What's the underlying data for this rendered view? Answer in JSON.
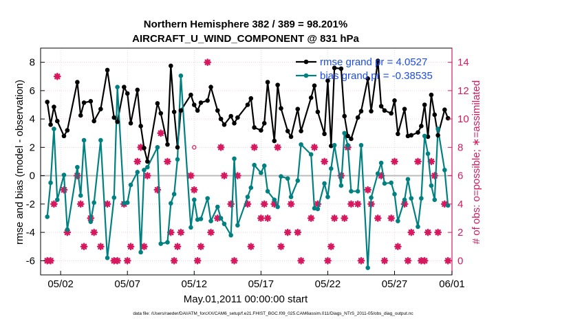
{
  "chart_data": {
    "type": "line",
    "title": "Northern Hemisphere 382 / 389 = 98.201%",
    "subtitle": "AIRCRAFT_U_WIND_COMPONENT @ 831 hPa",
    "xlabel": "May.01,2011 00:00:00 start",
    "ylabel": "rmse and bias (model - observation)",
    "y2label": "# of obs: o=possible; ∗=assimilated",
    "footnote": "data file: /Users/raeder/DAI/ATM_forcXX/CAM6_setup/f.e21.FHIST_BGC.f09_025.CAM6assim.011/Diags_NTrS_2011-05/obs_diag_output.nc",
    "xlim": [
      0.5,
      31.3
    ],
    "ylim": [
      -7,
      9
    ],
    "y2lim": [
      -1,
      15
    ],
    "xticks": [
      2,
      7,
      12,
      17,
      22,
      27,
      32
    ],
    "xtick_labels": [
      "05/02",
      "05/07",
      "05/12",
      "05/17",
      "05/22",
      "05/27",
      "06/01"
    ],
    "yticks": [
      -6,
      -4,
      -2,
      0,
      2,
      4,
      6,
      8
    ],
    "y2ticks": [
      0,
      2,
      4,
      6,
      8,
      10,
      12,
      14
    ],
    "colors": {
      "rmse": "#000000",
      "bias": "#008080",
      "obs": "#d6185e",
      "zero": "#bbbbbb",
      "legend_text": "#1a4cf0"
    },
    "series": [
      {
        "name": "rmse grand pr = 4.0527",
        "x": [
          1.0,
          1.25,
          1.5,
          1.75,
          2.25,
          2.5,
          3.25,
          3.5,
          3.75,
          4.25,
          4.5,
          5.0,
          5.5,
          6.0,
          6.25,
          6.75,
          7.0,
          7.25,
          7.75,
          8.0,
          8.25,
          8.5,
          9.25,
          9.5,
          10.0,
          10.25,
          10.5,
          10.75,
          11.0,
          11.75,
          12.0,
          12.25,
          12.5,
          13.0,
          13.25,
          13.75,
          14.0,
          14.25,
          14.75,
          15.0,
          15.25,
          16.0,
          16.25,
          16.5,
          17.0,
          17.25,
          17.5,
          18.0,
          18.25,
          18.5,
          19.0,
          19.25,
          19.75,
          20.0,
          20.75,
          21.0,
          21.25,
          21.75,
          22.0,
          22.25,
          22.5,
          23.0,
          23.25,
          23.5,
          23.75,
          24.25,
          24.5,
          25.0,
          25.25,
          25.75,
          26.0,
          26.25,
          26.75,
          27.0,
          27.25,
          27.75,
          28.0,
          28.25,
          28.75,
          29.0,
          29.25,
          29.5,
          29.75,
          30.0,
          30.25,
          30.75,
          31.0
        ],
        "values": [
          5.2,
          3.6,
          4.85,
          3.85,
          2.8,
          3.2,
          6.6,
          4.25,
          5.15,
          5.25,
          3.85,
          4.7,
          7.45,
          4.1,
          3.8,
          6.25,
          5.8,
          3.7,
          6.05,
          3.5,
          1.95,
          1.0,
          5.1,
          4.4,
          2.2,
          7.75,
          4.5,
          2.0,
          4.6,
          5.7,
          5.0,
          4.6,
          5.15,
          5.3,
          6.25,
          4.6,
          4.0,
          3.6,
          4.2,
          3.7,
          4.1,
          5.0,
          5.45,
          3.4,
          3.2,
          3.7,
          6.6,
          2.45,
          6.4,
          4.75,
          3.15,
          2.75,
          4.7,
          3.15,
          5.5,
          6.35,
          4.5,
          2.95,
          6.7,
          2.1,
          7.6,
          7.55,
          4.2,
          2.8,
          2.6,
          4.1,
          4.55,
          6.85,
          4.55,
          8.1,
          4.9,
          4.6,
          4.4,
          5.3,
          2.95,
          4.7,
          2.8,
          2.85,
          3.05,
          3.5,
          5.0,
          2.75,
          5.7,
          4.3,
          2.85,
          4.65,
          4.05
        ]
      },
      {
        "name": "bias grand pr = -0.38535",
        "x": [
          1.0,
          1.25,
          1.5,
          1.75,
          2.25,
          2.5,
          3.25,
          3.5,
          3.75,
          4.25,
          4.5,
          5.0,
          5.5,
          6.0,
          6.25,
          6.75,
          7.0,
          7.25,
          7.75,
          8.0,
          8.25,
          8.5,
          9.25,
          9.5,
          10.0,
          10.25,
          10.5,
          10.75,
          11.0,
          11.75,
          12.0,
          12.25,
          12.5,
          13.0,
          13.25,
          13.75,
          14.0,
          14.25,
          14.75,
          15.0,
          15.25,
          16.0,
          16.25,
          16.5,
          17.0,
          17.25,
          17.5,
          18.0,
          18.25,
          18.5,
          19.0,
          19.25,
          19.75,
          20.0,
          20.75,
          21.0,
          21.25,
          21.75,
          22.0,
          22.25,
          22.5,
          23.0,
          23.25,
          23.5,
          23.75,
          24.25,
          24.5,
          25.0,
          25.25,
          25.75,
          26.0,
          26.25,
          26.75,
          27.0,
          27.25,
          27.75,
          28.0,
          28.25,
          28.75,
          29.0,
          29.25,
          29.5,
          29.75,
          30.0,
          30.25,
          30.75,
          31.0
        ],
        "values": [
          -2.9,
          -0.5,
          3.3,
          -1.7,
          0.05,
          -3.8,
          0.6,
          -1.4,
          2.5,
          -3.25,
          -1.9,
          2.5,
          -5.8,
          -1.55,
          6.25,
          -1.95,
          -1.9,
          -0.65,
          0.25,
          -5.4,
          0.4,
          0.6,
          2.0,
          -4.8,
          -4.7,
          -1.95,
          -1.3,
          1.15,
          7.05,
          -3.65,
          -1.7,
          -3.1,
          -3.05,
          -1.6,
          -3.2,
          -2.2,
          -3.0,
          -3.4,
          -4.2,
          1.2,
          -3.5,
          -1.5,
          -0.85,
          0.75,
          0.2,
          0.7,
          -1.1,
          -1.7,
          -2.2,
          -0.05,
          -0.2,
          -1.5,
          -0.35,
          2.2,
          1.5,
          -2.3,
          -2.35,
          -0.55,
          -1.5,
          0.5,
          2.15,
          -0.7,
          3.0,
          2.15,
          -1.1,
          -1.1,
          2.15,
          -6.5,
          -1.55,
          0.15,
          0.9,
          -0.55,
          -0.5,
          -1.3,
          -3.2,
          -1.7,
          -0.25,
          -1.6,
          -3.6,
          -1.6,
          2.8,
          1.55,
          -0.7,
          -1.7,
          3.3,
          0.4,
          -2.1
        ]
      }
    ],
    "obs_possible": {
      "x": [
        1.0,
        1.25,
        1.5,
        1.75,
        2.25,
        2.5,
        3.25,
        3.5,
        3.75,
        4.25,
        4.5,
        5.0,
        5.5,
        6.0,
        6.25,
        6.75,
        7.0,
        7.25,
        7.75,
        8.0,
        8.25,
        8.5,
        9.25,
        9.5,
        10.0,
        10.25,
        10.5,
        10.75,
        11.0,
        11.75,
        12.0,
        12.25,
        12.5,
        13.0,
        13.25,
        13.75,
        14.0,
        14.25,
        14.75,
        15.0,
        15.25,
        16.0,
        16.25,
        16.5,
        17.0,
        17.25,
        17.5,
        18.0,
        18.25,
        18.5,
        19.0,
        19.25,
        19.75,
        20.0,
        20.75,
        21.0,
        21.25,
        21.75,
        22.0,
        22.25,
        22.5,
        23.0,
        23.25,
        23.5,
        23.75,
        24.25,
        24.5,
        25.0,
        25.25,
        25.75,
        26.0,
        26.25,
        26.75,
        27.0,
        27.25,
        27.75,
        28.0,
        28.25,
        28.75,
        29.0,
        29.25,
        29.5,
        29.75,
        30.0,
        30.25,
        30.75,
        31.0
      ],
      "values": [
        0,
        0,
        4,
        13,
        5,
        2,
        6,
        4,
        1,
        3,
        2,
        1,
        4,
        0,
        0,
        4,
        0,
        1,
        7,
        8,
        1,
        6,
        8,
        9,
        7,
        2,
        0,
        1,
        2,
        6,
        8,
        0,
        1,
        14,
        2,
        3,
        8,
        6,
        4,
        0,
        6,
        4,
        1,
        8,
        3,
        4,
        3,
        4,
        8,
        1,
        2,
        4,
        2,
        0,
        3,
        8,
        4,
        7,
        0,
        1,
        3,
        6,
        3,
        8,
        4,
        4,
        0,
        5,
        4,
        3,
        6,
        0,
        3,
        7,
        1,
        4,
        0,
        2,
        7,
        0,
        0,
        2,
        7,
        6,
        2,
        4,
        0
      ]
    },
    "obs_assimilated": {
      "x": [
        1.0,
        1.25,
        1.5,
        1.75,
        2.25,
        2.5,
        3.25,
        3.5,
        3.75,
        4.25,
        4.5,
        5.0,
        5.5,
        6.0,
        6.25,
        6.75,
        7.0,
        7.25,
        7.75,
        8.0,
        8.25,
        8.5,
        9.25,
        9.5,
        10.0,
        10.25,
        10.5,
        10.75,
        11.0,
        11.75,
        12.0,
        12.25,
        12.5,
        13.0,
        13.25,
        13.75,
        14.0,
        14.25,
        14.75,
        15.0,
        15.25,
        16.0,
        16.25,
        16.5,
        17.0,
        17.25,
        17.5,
        18.0,
        18.25,
        18.5,
        19.0,
        19.25,
        19.75,
        20.0,
        20.75,
        21.0,
        21.25,
        21.75,
        22.0,
        22.25,
        22.5,
        23.0,
        23.25,
        23.5,
        23.75,
        24.25,
        24.5,
        25.0,
        25.25,
        25.75,
        26.0,
        26.25,
        26.75,
        27.0,
        27.25,
        27.75,
        28.0,
        28.25,
        28.75,
        29.0,
        29.25,
        29.5,
        29.75,
        30.0,
        30.25,
        30.75,
        31.0
      ],
      "values": [
        0,
        0,
        4,
        13,
        5,
        2,
        6,
        4,
        1,
        3,
        2,
        1,
        4,
        0,
        0,
        4,
        0,
        1,
        7,
        8,
        1,
        6,
        5,
        9,
        7,
        2,
        0,
        1,
        2,
        6,
        5,
        0,
        1,
        14,
        2,
        3,
        8,
        6,
        4,
        0,
        6,
        4,
        1,
        8,
        3,
        4,
        3,
        4,
        8,
        1,
        2,
        4,
        2,
        0,
        3,
        8,
        4,
        7,
        0,
        1,
        3,
        6,
        3,
        8,
        4,
        4,
        0,
        5,
        4,
        3,
        6,
        0,
        3,
        7,
        1,
        4,
        0,
        2,
        7,
        0,
        0,
        2,
        7,
        6,
        2,
        4,
        0
      ]
    }
  }
}
